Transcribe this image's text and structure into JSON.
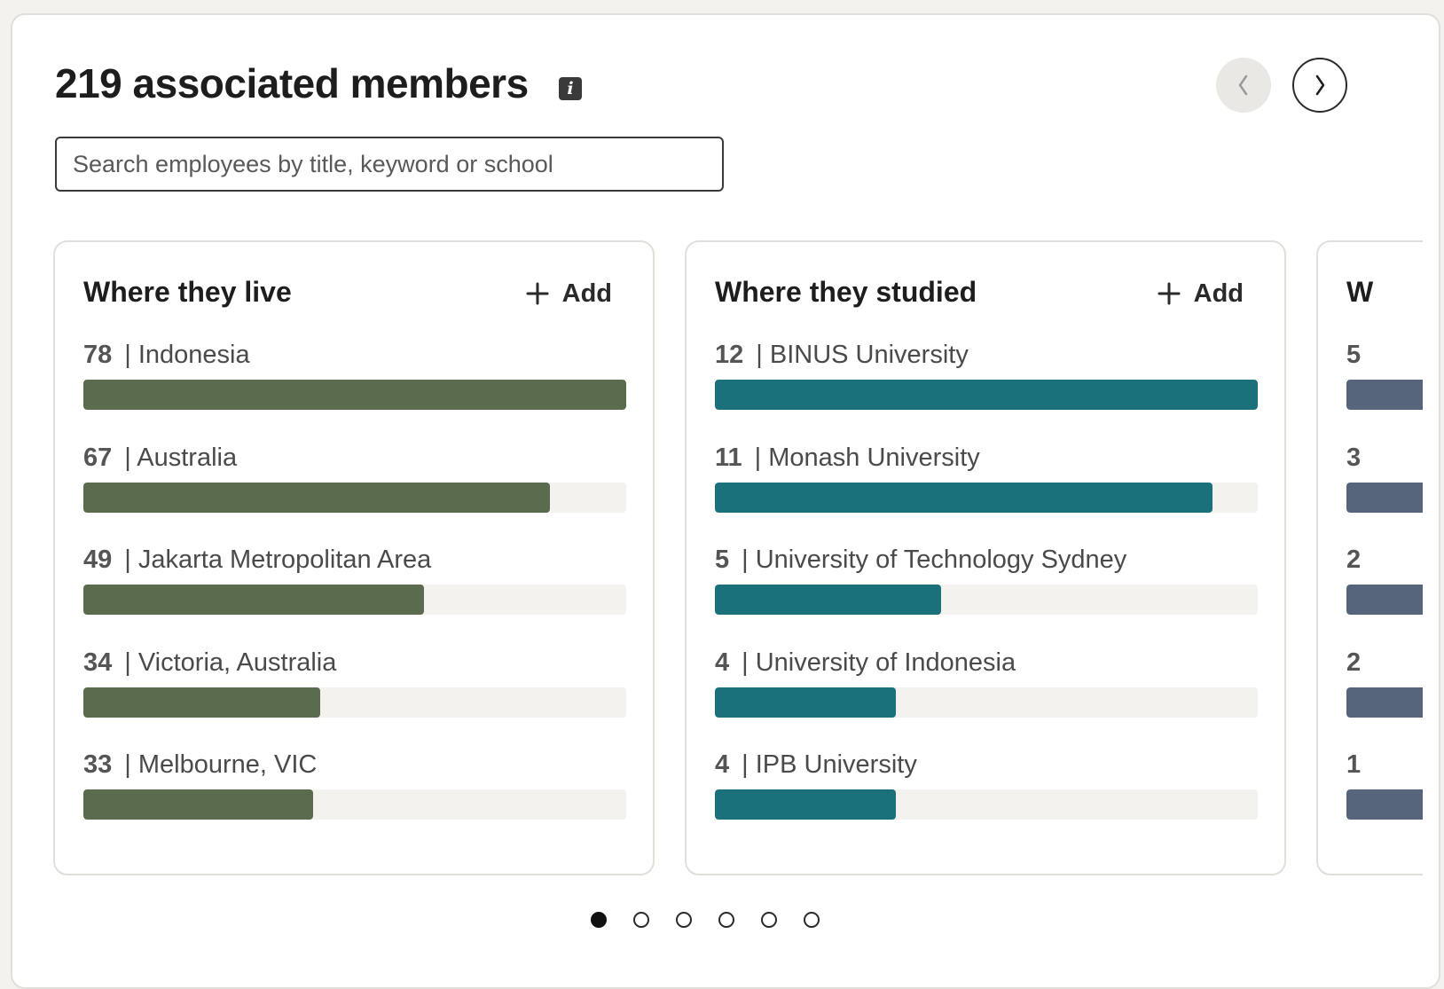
{
  "header": {
    "title": "219 associated members",
    "info_icon": "info-icon",
    "prev_icon": "chevron-left-icon",
    "next_icon": "chevron-right-icon"
  },
  "search": {
    "placeholder": "Search employees by title, keyword or school",
    "value": ""
  },
  "cards": [
    {
      "title": "Where they live",
      "add_label": "Add",
      "color": "#5a6b4e",
      "items": [
        {
          "count": "78",
          "label": "| Indonesia",
          "fraction": 1.0
        },
        {
          "count": "67",
          "label": "| Australia",
          "fraction": 0.859
        },
        {
          "count": "49",
          "label": "| Jakarta Metropolitan Area",
          "fraction": 0.628
        },
        {
          "count": "34",
          "label": "| Victoria, Australia",
          "fraction": 0.436
        },
        {
          "count": "33",
          "label": "| Melbourne, VIC",
          "fraction": 0.423
        }
      ]
    },
    {
      "title": "Where they studied",
      "add_label": "Add",
      "color": "#1a707b",
      "items": [
        {
          "count": "12",
          "label": "| BINUS University",
          "fraction": 1.0
        },
        {
          "count": "11",
          "label": "| Monash University",
          "fraction": 0.917
        },
        {
          "count": "5",
          "label": "| University of Technology Sydney",
          "fraction": 0.417
        },
        {
          "count": "4",
          "label": "| University of Indonesia",
          "fraction": 0.333
        },
        {
          "count": "4",
          "label": "| IPB University",
          "fraction": 0.333
        }
      ]
    },
    {
      "title": "W",
      "add_label": "",
      "color": "#56657c",
      "items": [
        {
          "count": "5",
          "label": "",
          "fraction": 1.0
        },
        {
          "count": "3",
          "label": "",
          "fraction": 0.6
        },
        {
          "count": "2",
          "label": "",
          "fraction": 0.4
        },
        {
          "count": "2",
          "label": "",
          "fraction": 0.4
        },
        {
          "count": "1",
          "label": "",
          "fraction": 0.2
        }
      ]
    }
  ],
  "pagination": {
    "total": 6,
    "active": 0
  }
}
